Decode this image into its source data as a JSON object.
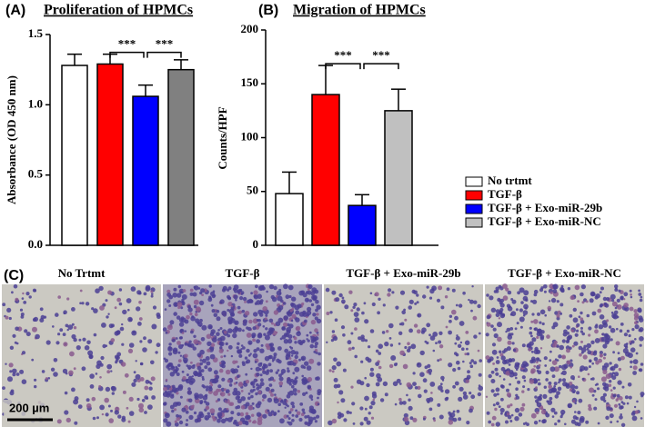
{
  "chart_data": [
    {
      "type": "bar",
      "panel_label": "(A)",
      "title": "Proliferation of HPMCs",
      "ylabel": "Absorbance (OD 450 nm)",
      "values": [
        1.28,
        1.29,
        1.06,
        1.25
      ],
      "errors": [
        0.08,
        0.07,
        0.08,
        0.07
      ],
      "colors": [
        "#ffffff",
        "#ff0000",
        "#0000ff",
        "#808080"
      ],
      "ylim": [
        0,
        1.5
      ],
      "yticks": [
        {
          "value": 0,
          "label": "0.0"
        },
        0.5,
        {
          "value": 1,
          "label": "1.0"
        },
        1.5
      ],
      "annotations": [
        {
          "text": "***",
          "between": [
            1,
            2
          ]
        },
        {
          "text": "***",
          "between": [
            2,
            3
          ]
        }
      ]
    },
    {
      "type": "bar",
      "panel_label": "(B)",
      "title": "Migration of HPMCs",
      "ylabel": "Counts/HPF",
      "values": [
        48,
        140,
        37,
        125
      ],
      "errors": [
        20,
        27,
        10,
        20
      ],
      "colors": [
        "#ffffff",
        "#ff0000",
        "#0000ff",
        "#c0c0c0"
      ],
      "legend": [
        "No trtmt",
        "TGF-β",
        "TGF-β + Exo-miR-29b",
        "TGF-β + Exo-miR-NC"
      ],
      "ylim": [
        0,
        200
      ],
      "yticks": [
        0,
        50,
        100,
        150,
        200
      ],
      "annotations": [
        {
          "text": "***",
          "between": [
            1,
            2
          ]
        },
        {
          "text": "***",
          "between": [
            2,
            3
          ]
        }
      ]
    }
  ],
  "panel_c": {
    "label": "(C)",
    "captions": [
      "No Trtmt",
      "TGF-β",
      "TGF-β + Exo-miR-29b",
      "TGF-β + Exo-miR-NC"
    ],
    "scale_bar": "200 µm"
  }
}
